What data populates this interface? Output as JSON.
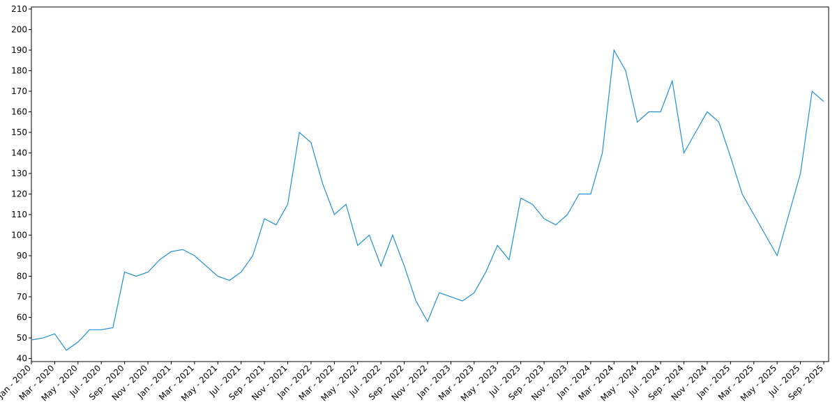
{
  "chart_data": {
    "type": "line",
    "x": [
      "2020-01",
      "2020-02",
      "2020-03",
      "2020-04",
      "2020-05",
      "2020-06",
      "2020-07",
      "2020-08",
      "2020-09",
      "2020-10",
      "2020-11",
      "2020-12",
      "2021-01",
      "2021-02",
      "2021-03",
      "2021-04",
      "2021-05",
      "2021-06",
      "2021-07",
      "2021-08",
      "2021-09",
      "2021-10",
      "2021-11",
      "2021-12",
      "2022-01",
      "2022-02",
      "2022-03",
      "2022-04",
      "2022-05",
      "2022-06",
      "2022-07",
      "2022-08",
      "2022-09",
      "2022-10",
      "2022-11",
      "2022-12",
      "2023-01",
      "2023-02",
      "2023-03",
      "2023-04",
      "2023-05",
      "2023-06",
      "2023-07",
      "2023-08",
      "2023-09",
      "2023-10",
      "2023-11",
      "2023-12",
      "2024-01",
      "2024-02",
      "2024-03",
      "2024-04",
      "2024-05",
      "2024-06",
      "2024-07",
      "2024-08",
      "2024-09",
      "2024-10",
      "2024-11",
      "2024-12",
      "2025-01",
      "2025-02",
      "2025-03",
      "2025-04",
      "2025-05",
      "2025-06",
      "2025-07",
      "2025-08",
      "2025-09"
    ],
    "series": [
      {
        "color": "#1f8fd4",
        "values": [
          49,
          50,
          52,
          44,
          48,
          54,
          54,
          55,
          82,
          80,
          82,
          88,
          92,
          93,
          90,
          85,
          80,
          78,
          82,
          90,
          108,
          105,
          115,
          150,
          145,
          125,
          110,
          115,
          95,
          100,
          85,
          100,
          85,
          68,
          58,
          72,
          70,
          68,
          72,
          82,
          95,
          88,
          118,
          115,
          108,
          105,
          110,
          120,
          120,
          140,
          190,
          180,
          155,
          160,
          160,
          175,
          140,
          150,
          160,
          155,
          138,
          120,
          110,
          100,
          90,
          110,
          130,
          170,
          165
        ]
      }
    ],
    "xlim": [
      "2020-01",
      "2025-09"
    ],
    "xticks": [
      {
        "value": "2020-01",
        "label": "Jan - 2020"
      },
      {
        "value": "2020-03",
        "label": "Mar - 2020"
      },
      {
        "value": "2020-05",
        "label": "May - 2020"
      },
      {
        "value": "2020-07",
        "label": "Jul - 2020"
      },
      {
        "value": "2020-09",
        "label": "Sep - 2020"
      },
      {
        "value": "2020-11",
        "label": "Nov - 2020"
      },
      {
        "value": "2021-01",
        "label": "Jan - 2021"
      },
      {
        "value": "2021-03",
        "label": "Mar - 2021"
      },
      {
        "value": "2021-05",
        "label": "May - 2021"
      },
      {
        "value": "2021-07",
        "label": "Jul - 2021"
      },
      {
        "value": "2021-09",
        "label": "Sep - 2021"
      },
      {
        "value": "2021-11",
        "label": "Nov - 2021"
      },
      {
        "value": "2022-01",
        "label": "Jan - 2022"
      },
      {
        "value": "2022-03",
        "label": "Mar - 2022"
      },
      {
        "value": "2022-05",
        "label": "May - 2022"
      },
      {
        "value": "2022-07",
        "label": "Jul - 2022"
      },
      {
        "value": "2022-09",
        "label": "Sep - 2022"
      },
      {
        "value": "2022-11",
        "label": "Nov - 2022"
      },
      {
        "value": "2023-01",
        "label": "Jan - 2023"
      },
      {
        "value": "2023-03",
        "label": "Mar - 2023"
      },
      {
        "value": "2023-05",
        "label": "May - 2023"
      },
      {
        "value": "2023-07",
        "label": "Jul - 2023"
      },
      {
        "value": "2023-09",
        "label": "Sep - 2023"
      },
      {
        "value": "2023-11",
        "label": "Nov - 2023"
      },
      {
        "value": "2024-01",
        "label": "Jan - 2024"
      },
      {
        "value": "2024-03",
        "label": "Mar - 2024"
      },
      {
        "value": "2024-05",
        "label": "May - 2024"
      },
      {
        "value": "2024-07",
        "label": "Jul - 2024"
      },
      {
        "value": "2024-09",
        "label": "Sep - 2024"
      },
      {
        "value": "2024-11",
        "label": "Nov - 2024"
      },
      {
        "value": "2025-01",
        "label": "Jan - 2025"
      },
      {
        "value": "2025-03",
        "label": "Mar - 2025"
      },
      {
        "value": "2025-05",
        "label": "May - 2025"
      },
      {
        "value": "2025-07",
        "label": "Jul - 2025"
      },
      {
        "value": "2025-09",
        "label": "Sep - 2025"
      }
    ],
    "ylim": [
      38.5,
      211
    ],
    "yticks": [
      40,
      50,
      60,
      70,
      80,
      90,
      100,
      110,
      120,
      130,
      140,
      150,
      160,
      170,
      180,
      190,
      200,
      210
    ],
    "grid": false
  }
}
